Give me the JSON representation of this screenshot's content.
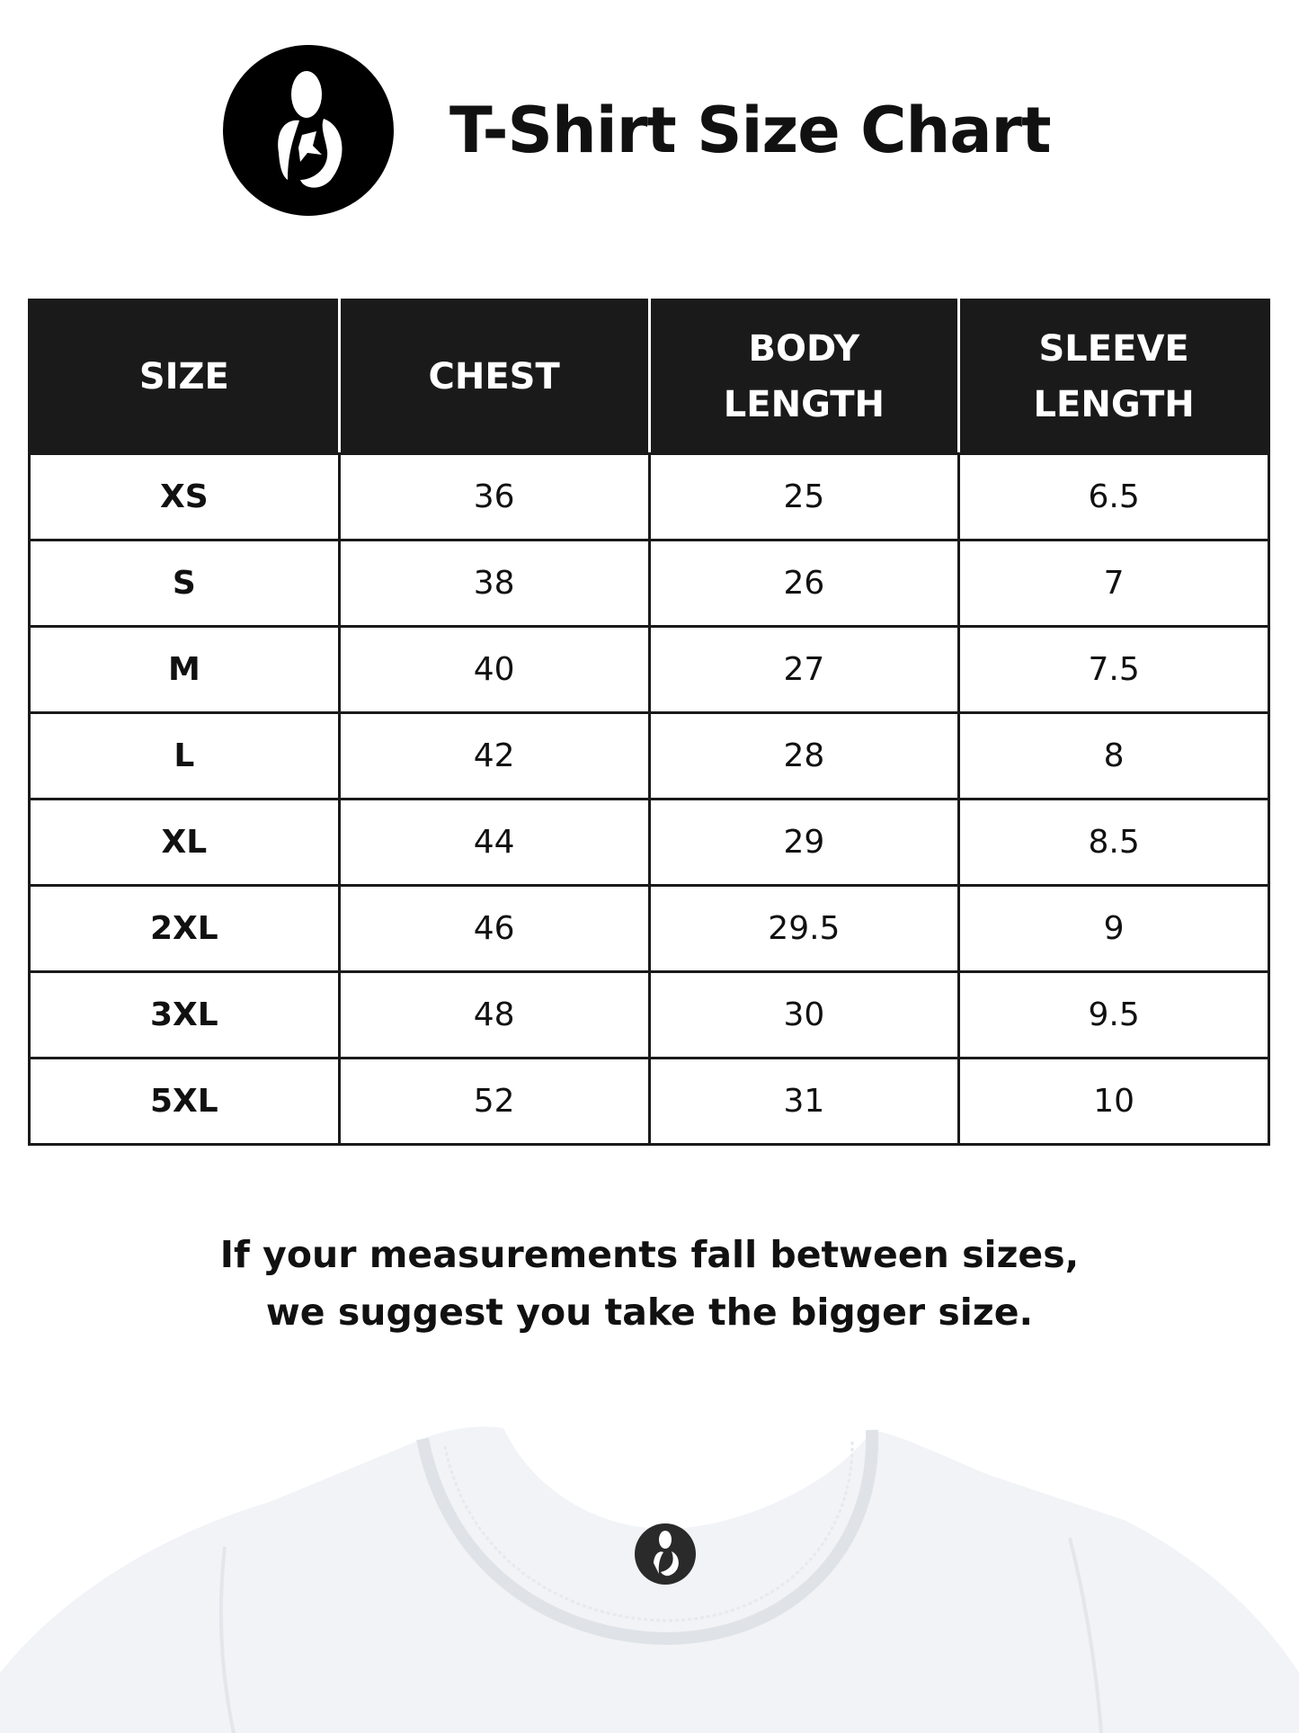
{
  "header": {
    "title": "T-Shirt Size Chart",
    "logo": "brand-logo-icon"
  },
  "table": {
    "columns": [
      [
        "SIZE"
      ],
      [
        "CHEST"
      ],
      [
        "BODY",
        "LENGTH"
      ],
      [
        "SLEEVE",
        "LENGTH"
      ]
    ],
    "rows": [
      [
        "XS",
        "36",
        "25",
        "6.5"
      ],
      [
        "S",
        "38",
        "26",
        "7"
      ],
      [
        "M",
        "40",
        "27",
        "7.5"
      ],
      [
        "L",
        "42",
        "28",
        "8"
      ],
      [
        "XL",
        "44",
        "29",
        "8.5"
      ],
      [
        "2XL",
        "46",
        "29.5",
        "9"
      ],
      [
        "3XL",
        "48",
        "30",
        "9.5"
      ],
      [
        "5XL",
        "52",
        "31",
        "10"
      ]
    ]
  },
  "note": {
    "line1": "If your measurements fall between sizes,",
    "line2": "we suggest you take the bigger size."
  },
  "colors": {
    "header_bg": "#1a1a1a",
    "shirt": "#f1f3f6"
  }
}
